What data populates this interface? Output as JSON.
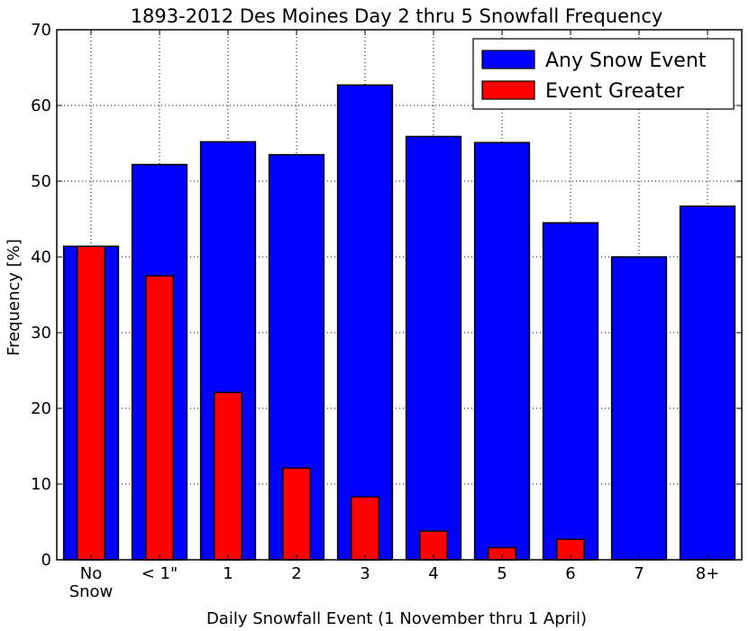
{
  "chart_data": {
    "type": "bar",
    "title": "1893-2012 Des Moines Day 2 thru 5 Snowfall Frequency",
    "xlabel": "Daily Snowfall Event (1 November thru 1 April)",
    "ylabel": "Frequency [%]",
    "ylim": [
      0,
      70
    ],
    "yticks": [
      0,
      10,
      20,
      30,
      40,
      50,
      60,
      70
    ],
    "grid": true,
    "legend_position": "top-right",
    "categories": [
      [
        "No",
        "Snow"
      ],
      [
        "< 1\""
      ],
      [
        "1"
      ],
      [
        "2"
      ],
      [
        "3"
      ],
      [
        "4"
      ],
      [
        "5"
      ],
      [
        "6"
      ],
      [
        "7"
      ],
      [
        "8+"
      ]
    ],
    "series": [
      {
        "name": "Any Snow Event",
        "color": "#0000ff",
        "values": [
          41.4,
          52.2,
          55.2,
          53.5,
          62.7,
          55.9,
          55.1,
          44.5,
          40.0,
          46.7
        ]
      },
      {
        "name": "Event Greater",
        "color": "#ff0000",
        "values": [
          41.4,
          37.5,
          22.1,
          12.1,
          8.3,
          3.8,
          1.6,
          2.7,
          0,
          0
        ]
      }
    ]
  }
}
